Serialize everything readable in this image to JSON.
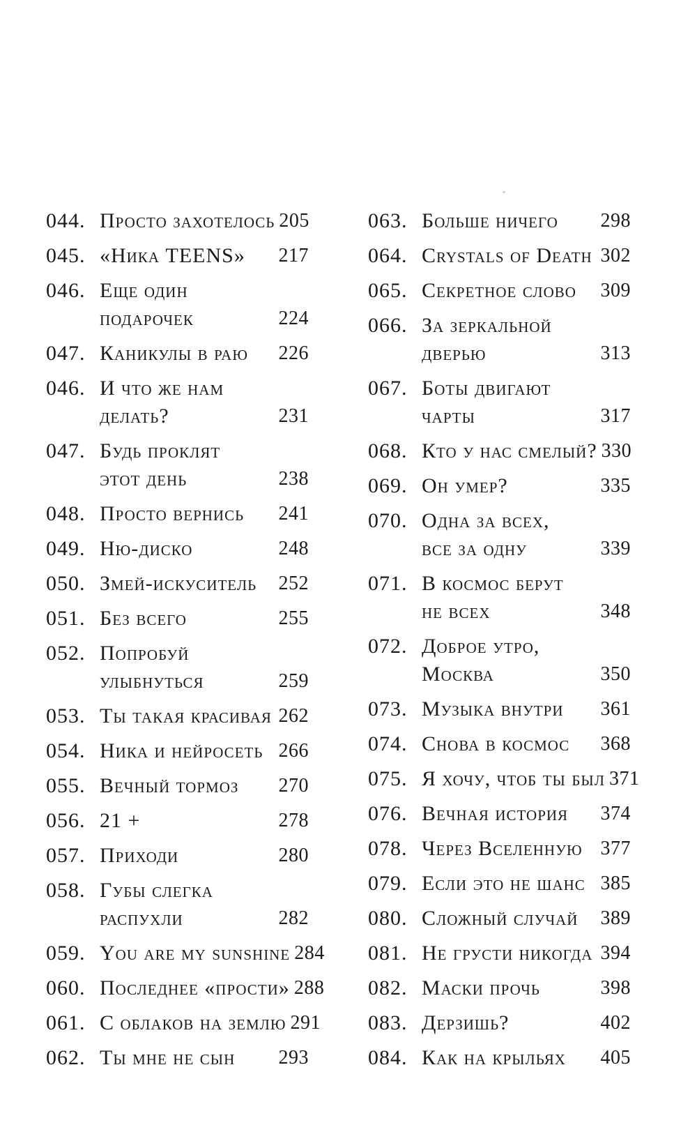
{
  "toc": {
    "columns": [
      {
        "entries": [
          {
            "num": "044.",
            "title": "Просто захотелось",
            "page": "205"
          },
          {
            "num": "045.",
            "title": "«Ника TEENS»",
            "page": "217"
          },
          {
            "num": "046.",
            "title": "Еще один\nподарочек",
            "page": "224"
          },
          {
            "num": "047.",
            "title": "Каникулы в раю",
            "page": "226"
          },
          {
            "num": "046.",
            "title": "И что же нам\nделать?",
            "page": "231"
          },
          {
            "num": "047.",
            "title": "Будь проклят\nэтот день",
            "page": "238"
          },
          {
            "num": "048.",
            "title": "Просто вернись",
            "page": "241"
          },
          {
            "num": "049.",
            "title": "Ню-диско",
            "page": "248"
          },
          {
            "num": "050.",
            "title": "Змей-искуситель",
            "page": "252"
          },
          {
            "num": "051.",
            "title": "Без всего",
            "page": "255"
          },
          {
            "num": "052.",
            "title": "Попробуй\nулыбнуться",
            "page": "259"
          },
          {
            "num": "053.",
            "title": "Ты такая красивая",
            "page": "262"
          },
          {
            "num": "054.",
            "title": "Ника и нейросеть",
            "page": "266"
          },
          {
            "num": "055.",
            "title": "Вечный тормоз",
            "page": "270"
          },
          {
            "num": "056.",
            "title": "21 +",
            "page": "278"
          },
          {
            "num": "057.",
            "title": "Приходи",
            "page": "280"
          },
          {
            "num": "058.",
            "title": "Губы слегка\nраспухли",
            "page": "282"
          },
          {
            "num": "059.",
            "title": "You are my sunshine",
            "page": "284"
          },
          {
            "num": "060.",
            "title": "Последнее «прости»",
            "page": "288"
          },
          {
            "num": "061.",
            "title": "С облаков на землю",
            "page": "291"
          },
          {
            "num": "062.",
            "title": "Ты мне не сын",
            "page": "293"
          }
        ]
      },
      {
        "entries": [
          {
            "num": "063.",
            "title": "Больше ничего",
            "page": "298"
          },
          {
            "num": "064.",
            "title": "Crystals of Death",
            "page": "302"
          },
          {
            "num": "065.",
            "title": "Секретное слово",
            "page": "309"
          },
          {
            "num": "066.",
            "title": "За зеркальной\nдверью",
            "page": "313"
          },
          {
            "num": "067.",
            "title": "Боты двигают\nчарты",
            "page": "317"
          },
          {
            "num": "068.",
            "title": "Кто у нас смелый?",
            "page": "330"
          },
          {
            "num": "069.",
            "title": "Он умер?",
            "page": "335"
          },
          {
            "num": "070.",
            "title": "Одна за всех,\nвсе за одну",
            "page": "339"
          },
          {
            "num": "071.",
            "title": "В космос берут\nне всех",
            "page": "348"
          },
          {
            "num": "072.",
            "title": "Доброе утро,\nМосква",
            "page": "350"
          },
          {
            "num": "073.",
            "title": "Музыка внутри",
            "page": "361"
          },
          {
            "num": "074.",
            "title": "Снова в космос",
            "page": "368"
          },
          {
            "num": "075.",
            "title": "Я хочу, чтоб ты был",
            "page": "371"
          },
          {
            "num": "076.",
            "title": "Вечная история",
            "page": "374"
          },
          {
            "num": "078.",
            "title": "Через Вселенную",
            "page": "377"
          },
          {
            "num": "079.",
            "title": "Если это не шанс",
            "page": "385"
          },
          {
            "num": "080.",
            "title": "Сложный случай",
            "page": "389"
          },
          {
            "num": "081.",
            "title": "Не грусти никогда",
            "page": "394"
          },
          {
            "num": "082.",
            "title": "Маски прочь",
            "page": "398"
          },
          {
            "num": "083.",
            "title": "Дерзишь?",
            "page": "402"
          },
          {
            "num": "084.",
            "title": "Как на крыльях",
            "page": "405"
          }
        ]
      }
    ]
  }
}
